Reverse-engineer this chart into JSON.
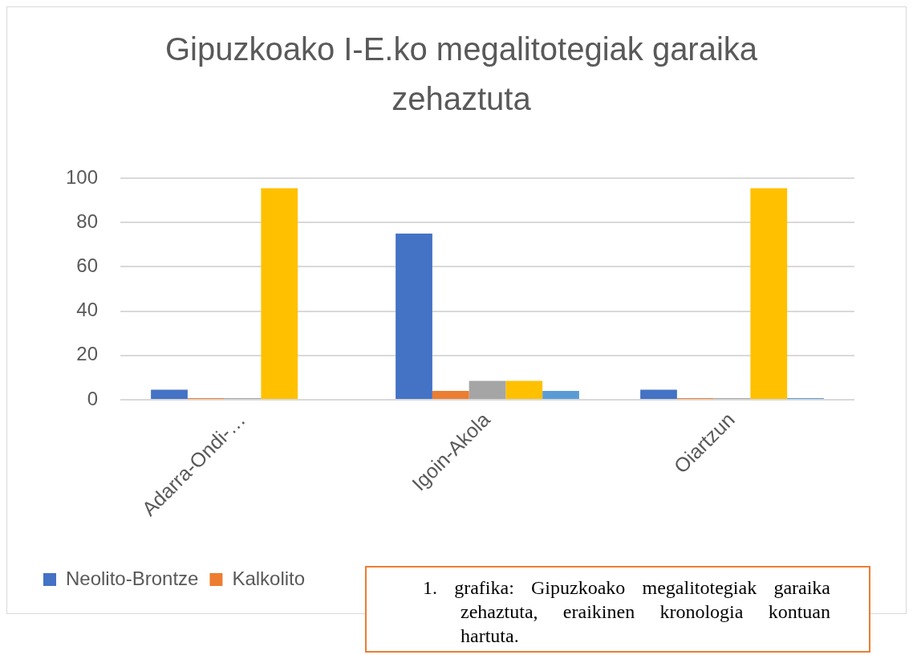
{
  "chart_data": {
    "type": "bar",
    "title": "Gipuzkoako I-E.ko megalitotegiak garaika zehaztuta",
    "categories": [
      "Adarra-Ondi-…",
      "Igoin-Akola",
      "Oiartzun"
    ],
    "series": [
      {
        "name": "Neolito-Brontze",
        "color": "#4472c4",
        "values": [
          4.5,
          75,
          4.5
        ]
      },
      {
        "name": "Kalkolito",
        "color": "#ed7d31",
        "values": [
          0,
          4,
          0
        ]
      },
      {
        "color": "#a5a5a5",
        "values": [
          0,
          8.5,
          0
        ]
      },
      {
        "color": "#ffc000",
        "values": [
          95.5,
          8.5,
          95.5
        ]
      },
      {
        "color": "#5b9bd5",
        "values": [
          null,
          4,
          0
        ]
      }
    ],
    "ylim": [
      0,
      100
    ],
    "yticks": [
      0,
      20,
      40,
      60,
      80,
      100
    ],
    "grid": "y",
    "legend": "bottom left",
    "annotations": [
      "1. grafika: Gipuzkoako megalitotegiak garaika zehaztuta, eraikinen kronologia kontuan hartuta."
    ]
  }
}
